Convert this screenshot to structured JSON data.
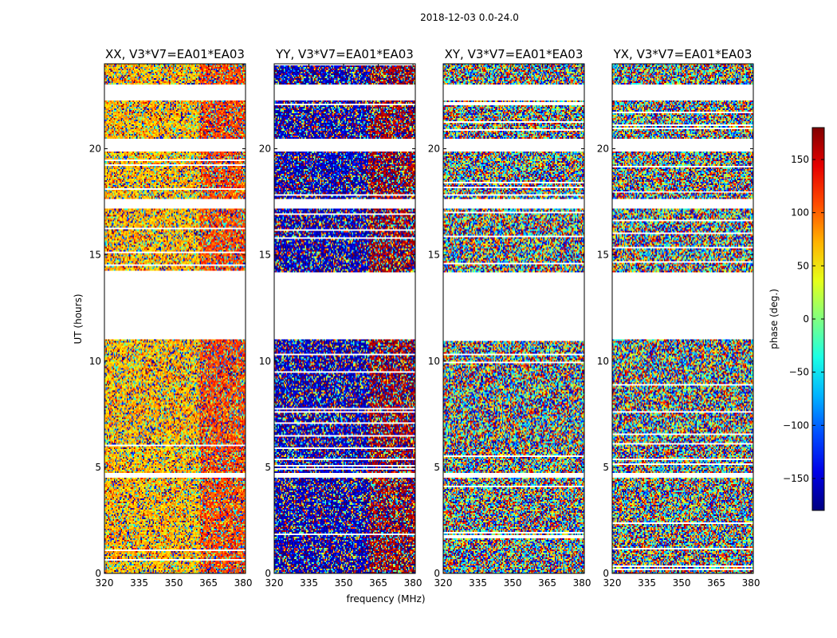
{
  "chart_data": {
    "type": "heatmap",
    "title": "2018-12-03 0.0-24.0",
    "xlabel": "frequency (MHz)",
    "ylabel": "UT (hours)",
    "xlim": [
      320,
      381
    ],
    "ylim": [
      0,
      24
    ],
    "x_ticks": [
      "320",
      "335",
      "350",
      "365",
      "380"
    ],
    "x_tick_values": [
      320,
      335,
      350,
      365,
      380
    ],
    "y_ticks": [
      "0",
      "5",
      "10",
      "15",
      "20"
    ],
    "y_tick_values": [
      0,
      5,
      10,
      15,
      20
    ],
    "colorbar": {
      "label": "phase (deg.)",
      "range": [
        -180,
        180
      ],
      "ticks": [
        "150",
        "100",
        "50",
        "0",
        "−50",
        "−100",
        "−150"
      ],
      "tick_values": [
        150,
        100,
        50,
        0,
        -50,
        -100,
        -150
      ],
      "colormap": "jet"
    },
    "panels": [
      {
        "name": "XX",
        "title": "XX, V3*V7=EA01*EA03",
        "base_phase_low": 70,
        "base_phase_high": 110
      },
      {
        "name": "YY",
        "title": "YY, V3*V7=EA01*EA03",
        "base_phase_low": -160,
        "base_phase_high": 170
      },
      {
        "name": "XY",
        "title": "XY, V3*V7=EA01*EA03",
        "base_phase_low": null,
        "base_phase_high": null
      },
      {
        "name": "YX",
        "title": "YX, V3*V7=EA01*EA03",
        "base_phase_low": null,
        "base_phase_high": null
      }
    ],
    "flagged_time_ranges_hours": [
      [
        11.0,
        14.2
      ],
      [
        17.2,
        17.6
      ],
      [
        19.9,
        20.5
      ],
      [
        22.3,
        23.0
      ],
      [
        4.5,
        4.7
      ]
    ],
    "transition_frequency_mhz": 361
  }
}
